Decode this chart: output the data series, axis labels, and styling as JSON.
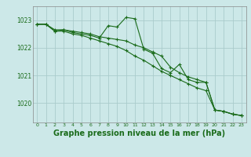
{
  "bg_color": "#cce8e8",
  "grid_color": "#aacccc",
  "line_color": "#1a6b1a",
  "marker_color": "#1a6b1a",
  "xlabel": "Graphe pression niveau de la mer (hPa)",
  "xlabel_fontsize": 7,
  "ylabel_ticks": [
    1020,
    1021,
    1022,
    1023
  ],
  "xlim": [
    -0.5,
    23.5
  ],
  "ylim": [
    1019.3,
    1023.5
  ],
  "x_ticks": [
    0,
    1,
    2,
    3,
    4,
    5,
    6,
    7,
    8,
    9,
    10,
    11,
    12,
    13,
    14,
    15,
    16,
    17,
    18,
    19,
    20,
    21,
    22,
    23
  ],
  "series1_x": [
    0,
    1,
    2,
    3,
    4,
    5,
    6,
    7,
    8,
    9,
    10,
    11,
    12,
    13,
    14,
    15,
    16,
    17,
    18,
    19,
    20,
    21,
    22,
    23
  ],
  "series1_y": [
    1022.85,
    1022.85,
    1022.6,
    1022.65,
    1022.55,
    1022.5,
    1022.45,
    1022.35,
    1022.8,
    1022.75,
    1023.1,
    1023.05,
    1021.95,
    1021.8,
    1021.25,
    1021.1,
    1021.4,
    1020.85,
    1020.75,
    1020.75,
    1019.75,
    1019.7,
    1019.6,
    1019.55
  ],
  "series2_x": [
    0,
    1,
    2,
    3,
    4,
    5,
    6,
    7,
    8,
    9,
    10,
    11,
    12,
    13,
    14,
    15,
    16,
    17,
    18,
    19,
    20,
    21,
    22,
    23
  ],
  "series2_y": [
    1022.85,
    1022.85,
    1022.65,
    1022.65,
    1022.6,
    1022.55,
    1022.5,
    1022.4,
    1022.35,
    1022.3,
    1022.25,
    1022.1,
    1022.0,
    1021.85,
    1021.7,
    1021.3,
    1021.1,
    1020.95,
    1020.85,
    1020.75,
    1019.75,
    1019.7,
    1019.6,
    1019.55
  ],
  "series3_x": [
    0,
    1,
    2,
    3,
    4,
    5,
    6,
    7,
    8,
    9,
    10,
    11,
    12,
    13,
    14,
    15,
    16,
    17,
    18,
    19,
    20,
    21,
    22,
    23
  ],
  "series3_y": [
    1022.85,
    1022.85,
    1022.6,
    1022.6,
    1022.5,
    1022.45,
    1022.35,
    1022.25,
    1022.15,
    1022.05,
    1021.9,
    1021.7,
    1021.55,
    1021.35,
    1021.15,
    1021.0,
    1020.85,
    1020.7,
    1020.55,
    1020.45,
    1019.75,
    1019.7,
    1019.6,
    1019.55
  ]
}
